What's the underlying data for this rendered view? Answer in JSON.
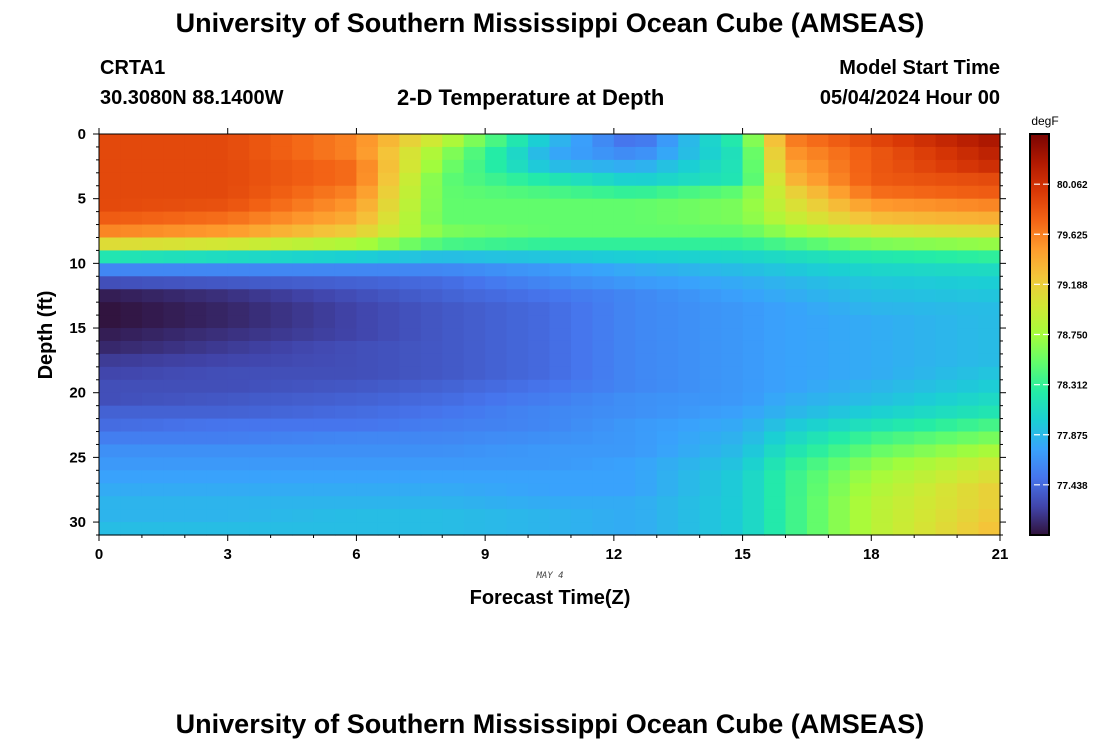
{
  "header": {
    "title": "University of Southern Mississippi Ocean Cube (AMSEAS)",
    "station": "CRTA1",
    "coords": "30.3080N  88.1400W",
    "plot_title": "2-D Temperature at Depth",
    "start_label": "Model Start Time",
    "start_value": "05/04/2024 Hour 00"
  },
  "footer": {
    "title": "University of Southern Mississippi Ocean Cube (AMSEAS)"
  },
  "chart_data": {
    "type": "heatmap",
    "title": "2-D Temperature at Depth",
    "xlabel": "Forecast Time(Z)",
    "ylabel": "Depth (ft)",
    "date_label": "MAY 4",
    "xlim": [
      0,
      21
    ],
    "ylim": [
      0,
      31
    ],
    "y_inverted": true,
    "x_ticks": [
      0,
      3,
      6,
      9,
      12,
      15,
      18,
      21
    ],
    "y_ticks": [
      0,
      5,
      10,
      15,
      20,
      25,
      30
    ],
    "x_tick_labels": [
      "0",
      "3",
      "6",
      "9",
      "12",
      "15",
      "18",
      "21"
    ],
    "y_tick_labels": [
      "0",
      "5",
      "10",
      "15",
      "20",
      "25",
      "30"
    ],
    "colorbar": {
      "unit": "degF",
      "min": 77.0,
      "max": 80.5,
      "ticks": [
        77.438,
        77.875,
        78.312,
        78.75,
        79.188,
        79.625,
        80.062
      ],
      "tick_labels": [
        "77.438",
        "77.875",
        "78.312",
        "78.750",
        "79.188",
        "79.625",
        "80.062"
      ],
      "colormap": [
        "#30123b",
        "#4145ab",
        "#4675ed",
        "#39a2fc",
        "#1bcfd4",
        "#24eca6",
        "#61fc6c",
        "#a4fc3b",
        "#d1e834",
        "#f3c63a",
        "#fe9b2d",
        "#f36315",
        "#d93806",
        "#b11901",
        "#7a0402"
      ]
    },
    "grid": {
      "time_step_h": 0.5,
      "depth_step_ft": 1,
      "time_steps": 42,
      "depth_levels": 31
    },
    "profiles": {
      "description_units": "degF",
      "depths_ft": [
        0,
        1,
        2,
        3,
        4,
        5,
        6,
        7,
        8,
        9,
        10,
        11,
        12,
        13,
        14,
        15,
        16,
        17,
        18,
        19,
        20,
        21,
        22,
        23,
        24,
        25,
        26,
        27,
        28,
        29,
        30
      ],
      "keyframes": [
        {
          "time": 0,
          "temps": [
            79.9,
            79.9,
            79.9,
            79.9,
            79.9,
            79.9,
            79.8,
            79.6,
            79.1,
            78.2,
            77.6,
            77.3,
            77.05,
            77.0,
            77.0,
            77.05,
            77.1,
            77.2,
            77.25,
            77.3,
            77.3,
            77.4,
            77.45,
            77.55,
            77.65,
            77.7,
            77.75,
            77.8,
            77.85,
            77.85,
            77.9
          ]
        },
        {
          "time": 3,
          "temps": [
            79.9,
            79.9,
            79.9,
            79.9,
            79.9,
            79.85,
            79.7,
            79.5,
            79.0,
            78.1,
            77.6,
            77.35,
            77.15,
            77.1,
            77.1,
            77.15,
            77.2,
            77.25,
            77.3,
            77.3,
            77.35,
            77.4,
            77.5,
            77.55,
            77.65,
            77.7,
            77.75,
            77.8,
            77.85,
            77.85,
            77.9
          ]
        },
        {
          "time": 6,
          "temps": [
            79.6,
            79.6,
            79.7,
            79.7,
            79.6,
            79.5,
            79.4,
            79.2,
            78.8,
            78.0,
            77.6,
            77.4,
            77.3,
            77.25,
            77.25,
            77.25,
            77.3,
            77.3,
            77.3,
            77.35,
            77.4,
            77.45,
            77.5,
            77.6,
            77.65,
            77.7,
            77.75,
            77.8,
            77.85,
            77.9,
            77.9
          ]
        },
        {
          "time": 8,
          "temps": [
            78.9,
            78.7,
            78.6,
            78.5,
            78.5,
            78.5,
            78.5,
            78.6,
            78.4,
            77.9,
            77.6,
            77.45,
            77.4,
            77.35,
            77.35,
            77.35,
            77.35,
            77.35,
            77.35,
            77.4,
            77.45,
            77.5,
            77.55,
            77.6,
            77.65,
            77.7,
            77.75,
            77.8,
            77.85,
            77.9,
            77.9
          ]
        },
        {
          "time": 10.5,
          "temps": [
            77.9,
            77.8,
            77.9,
            78.2,
            78.4,
            78.5,
            78.5,
            78.5,
            78.3,
            77.95,
            77.7,
            77.6,
            77.5,
            77.45,
            77.45,
            77.45,
            77.45,
            77.45,
            77.45,
            77.5,
            77.55,
            77.6,
            77.6,
            77.65,
            77.7,
            77.7,
            77.75,
            77.75,
            77.8,
            77.85,
            77.85
          ]
        },
        {
          "time": 12.5,
          "temps": [
            77.45,
            77.6,
            77.8,
            78.0,
            78.3,
            78.5,
            78.5,
            78.5,
            78.3,
            78.0,
            77.8,
            77.7,
            77.6,
            77.6,
            77.6,
            77.6,
            77.6,
            77.6,
            77.6,
            77.6,
            77.65,
            77.65,
            77.7,
            77.7,
            77.7,
            77.75,
            77.75,
            77.75,
            77.8,
            77.8,
            77.8
          ]
        },
        {
          "time": 15,
          "temps": [
            78.3,
            78.2,
            78.2,
            78.2,
            78.5,
            78.6,
            78.6,
            78.5,
            78.3,
            78.05,
            77.9,
            77.8,
            77.75,
            77.7,
            77.7,
            77.7,
            77.7,
            77.7,
            77.7,
            77.7,
            77.7,
            77.75,
            77.8,
            77.85,
            77.9,
            77.95,
            78.0,
            78.0,
            78.0,
            78.0,
            78.0
          ]
        },
        {
          "time": 16,
          "temps": [
            79.6,
            79.5,
            79.4,
            79.3,
            79.1,
            79.0,
            78.9,
            78.7,
            78.4,
            78.1,
            77.95,
            77.85,
            77.8,
            77.75,
            77.75,
            77.75,
            77.75,
            77.75,
            77.75,
            77.75,
            77.8,
            77.85,
            77.95,
            78.05,
            78.15,
            78.25,
            78.3,
            78.3,
            78.3,
            78.3,
            78.3
          ]
        },
        {
          "time": 18,
          "temps": [
            79.9,
            79.8,
            79.8,
            79.8,
            79.7,
            79.5,
            79.3,
            79.0,
            78.6,
            78.2,
            78.05,
            77.95,
            77.9,
            77.85,
            77.8,
            77.8,
            77.8,
            77.8,
            77.8,
            77.85,
            77.9,
            78.0,
            78.15,
            78.35,
            78.5,
            78.65,
            78.75,
            78.8,
            78.85,
            78.85,
            78.85
          ]
        },
        {
          "time": 21,
          "temps": [
            80.3,
            80.2,
            80.1,
            79.9,
            79.8,
            79.6,
            79.4,
            79.1,
            78.7,
            78.3,
            78.1,
            78.0,
            77.95,
            77.9,
            77.9,
            77.9,
            77.9,
            77.9,
            77.95,
            78.0,
            78.1,
            78.2,
            78.4,
            78.6,
            78.8,
            79.0,
            79.1,
            79.2,
            79.2,
            79.25,
            79.3
          ]
        }
      ]
    }
  }
}
